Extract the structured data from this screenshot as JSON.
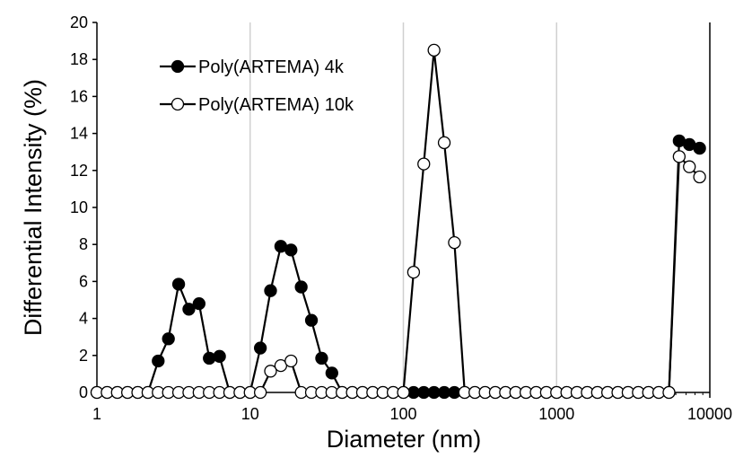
{
  "chart_data": {
    "type": "scatter",
    "xlabel": "Diameter (nm)",
    "ylabel": "Differential Intensity (%)",
    "xscale": "log",
    "xlim": [
      1,
      10000
    ],
    "ylim": [
      0,
      20
    ],
    "xticks": [
      1,
      10,
      100,
      1000,
      10000
    ],
    "xtick_labels": [
      "1",
      "10",
      "100",
      "1000",
      "10000"
    ],
    "yticks": [
      0,
      2,
      4,
      6,
      8,
      10,
      12,
      14,
      16,
      18,
      20
    ],
    "ytick_labels": [
      "0",
      "2",
      "4",
      "6",
      "8",
      "10",
      "12",
      "14",
      "16",
      "18",
      "20"
    ],
    "grid": "vertical",
    "legend_position": "top-left",
    "x": [
      1.0,
      1.166,
      1.359,
      1.585,
      1.848,
      2.154,
      2.512,
      2.929,
      3.415,
      3.981,
      4.642,
      5.412,
      6.31,
      7.356,
      8.577,
      10.0,
      11.66,
      13.59,
      15.85,
      18.48,
      21.54,
      25.12,
      29.29,
      34.15,
      39.81,
      46.42,
      54.12,
      63.1,
      73.56,
      85.77,
      100.0,
      116.6,
      135.9,
      158.5,
      184.8,
      215.4,
      251.2,
      292.9,
      341.5,
      398.1,
      464.2,
      541.2,
      631.0,
      735.6,
      857.7,
      1000.0,
      1166.0,
      1359.0,
      1585.0,
      1848.0,
      2154.0,
      2512.0,
      2929.0,
      3415.0,
      3981.0,
      4642.0,
      5412.0,
      6310.0,
      7356.0,
      8577.0,
      10000.0
    ],
    "series": [
      {
        "name": "Poly(ARTEMA) 4k",
        "marker": "filled-circle",
        "color": "#000000",
        "values": [
          0,
          0,
          0,
          0,
          0,
          0,
          1.7,
          2.9,
          5.85,
          4.5,
          4.8,
          1.85,
          1.95,
          0,
          0,
          0,
          2.4,
          5.5,
          7.9,
          7.7,
          5.7,
          3.9,
          1.85,
          1.05,
          0,
          0,
          0,
          0,
          0,
          0,
          0,
          0,
          0,
          0,
          0,
          0,
          0,
          0,
          0,
          0,
          0,
          0,
          0,
          0,
          0,
          0,
          0,
          0,
          0,
          0,
          0,
          0,
          0,
          0,
          0,
          0,
          0,
          13.6,
          13.4,
          13.2
        ]
      },
      {
        "name": "Poly(ARTEMA) 10k",
        "marker": "open-circle",
        "color": "#000000",
        "values": [
          0,
          0,
          0,
          0,
          0,
          0,
          0,
          0,
          0,
          0,
          0,
          0,
          0,
          0,
          0,
          0,
          0,
          1.15,
          1.45,
          1.7,
          0,
          0,
          0,
          0,
          0,
          0,
          0,
          0,
          0,
          0,
          0,
          6.5,
          12.35,
          18.5,
          13.5,
          8.1,
          0,
          0,
          0,
          0,
          0,
          0,
          0,
          0,
          0,
          0,
          0,
          0,
          0,
          0,
          0,
          0,
          0,
          0,
          0,
          0,
          0,
          12.75,
          12.2,
          11.65
        ]
      }
    ]
  }
}
